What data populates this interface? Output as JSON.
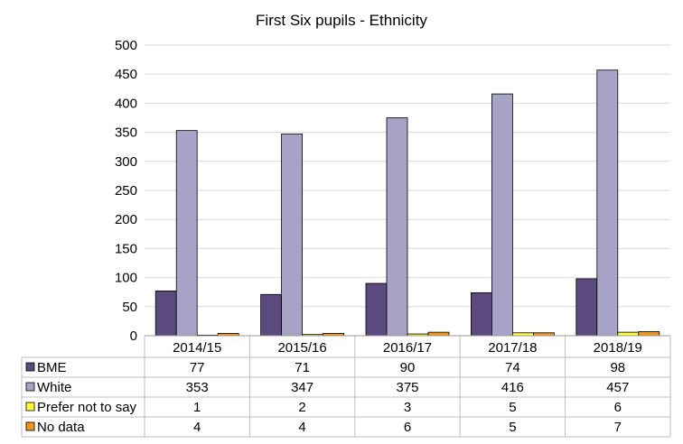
{
  "chart_data": {
    "type": "bar",
    "title": "First Six pupils - Ethnicity",
    "xlabel": "",
    "ylabel": "",
    "ylim": [
      0,
      500
    ],
    "yticks": [
      0,
      50,
      100,
      150,
      200,
      250,
      300,
      350,
      400,
      450,
      500
    ],
    "grid": true,
    "legend": "data-table-left",
    "categories": [
      "2014/15",
      "2015/16",
      "2016/17",
      "2017/18",
      "2018/19"
    ],
    "series": [
      {
        "name": "BME",
        "color": "#5b4a7d",
        "values": [
          77,
          71,
          90,
          74,
          98
        ]
      },
      {
        "name": "White",
        "color": "#a7a3c6",
        "values": [
          353,
          347,
          375,
          416,
          457
        ]
      },
      {
        "name": "Prefer not to say",
        "color": "#ffff33",
        "values": [
          1,
          2,
          3,
          5,
          6
        ]
      },
      {
        "name": "No data",
        "color": "#f0961f",
        "values": [
          4,
          4,
          6,
          5,
          7
        ]
      }
    ]
  }
}
